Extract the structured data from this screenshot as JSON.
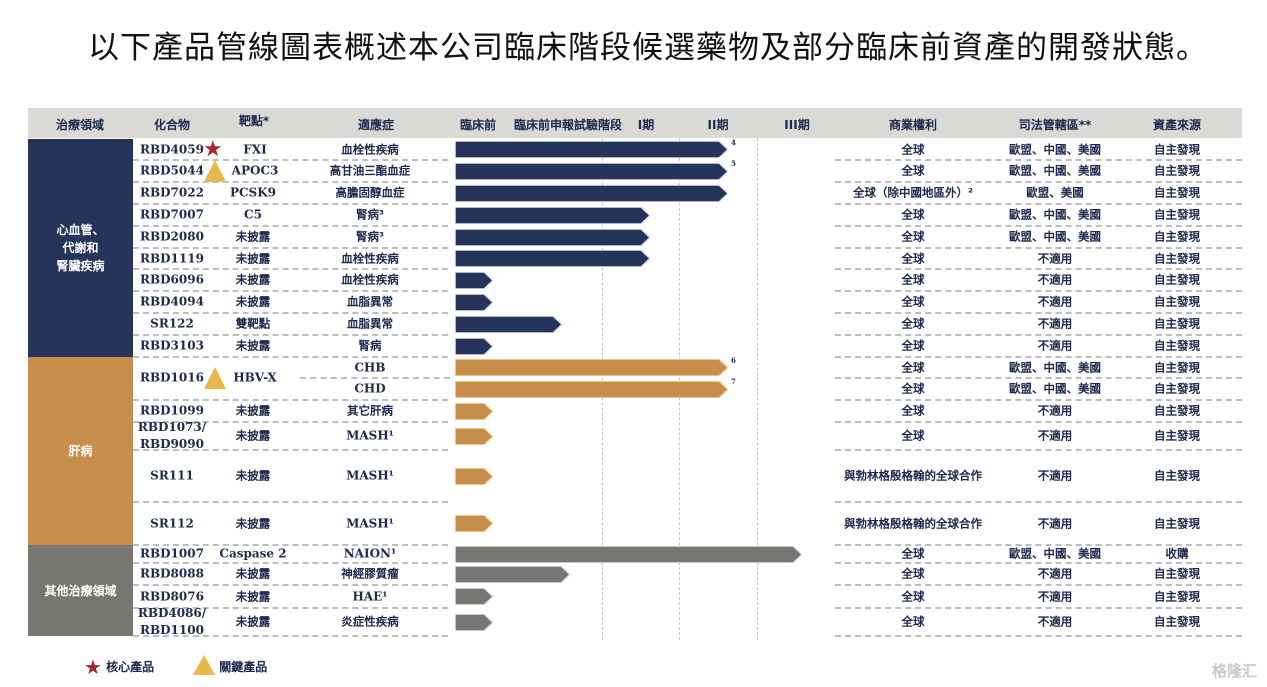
{
  "title": "以下產品管線圖表概述本公司臨床階段候選藥物及部分臨床前資產的開發狀態。",
  "header": {
    "area": "治療領域",
    "compound": "化合物",
    "target": "靶點*",
    "indication": "適應症",
    "preclinical": "臨床前",
    "ind": "臨床前申報試驗階段",
    "p1": "I期",
    "p2": "II期",
    "p3": "III期",
    "rights": "商業權利",
    "jurisdiction": "司法管轄區**",
    "source": "資產來源"
  },
  "colors": {
    "cardio": "#26335a",
    "liver": "#c68d4b",
    "other": "#767672",
    "star": "#a8252b",
    "triangle": "#e8b84a"
  },
  "areas": [
    {
      "label": "心血管、\n代謝和\n腎臟疾病",
      "color_key": "cardio"
    },
    {
      "label": "肝病",
      "color_key": "liver"
    },
    {
      "label": "其他治療領域",
      "color_key": "other"
    }
  ],
  "rows": [
    {
      "compound": "RBD4059",
      "badge": "star",
      "target": "FXI",
      "indication": "血栓性疾病",
      "stage": "II",
      "note": "4",
      "rights": "全球",
      "jurisdiction": "歐盟、中國、美國",
      "source": "自主發現",
      "area": 0
    },
    {
      "compound": "RBD5044",
      "badge": "triangle",
      "target": "APOC3",
      "indication": "高甘油三酯血症",
      "stage": "II",
      "note": "5",
      "rights": "全球",
      "jurisdiction": "歐盟、中國、美國",
      "source": "自主發現",
      "area": 0
    },
    {
      "compound": "RBD7022",
      "target": "PCSK9",
      "indication": "高膽固醇血症",
      "stage": "II",
      "rights": "全球（除中國地區外）²",
      "jurisdiction": "歐盟、美國",
      "source": "自主發現",
      "area": 0
    },
    {
      "compound": "RBD7007",
      "target": "C5",
      "indication": "腎病³",
      "stage": "I",
      "rights": "全球",
      "jurisdiction": "歐盟、中國、美國",
      "source": "自主發現",
      "area": 0
    },
    {
      "compound": "RBD2080",
      "target": "未披露",
      "indication": "腎病³",
      "stage": "I",
      "rights": "全球",
      "jurisdiction": "歐盟、中國、美國",
      "source": "自主發現",
      "area": 0
    },
    {
      "compound": "RBD1119",
      "target": "未披露",
      "indication": "血栓性疾病",
      "stage": "I",
      "rights": "全球",
      "jurisdiction": "不適用",
      "source": "自主發現",
      "area": 0
    },
    {
      "compound": "RBD6096",
      "target": "未披露",
      "indication": "血栓性疾病",
      "stage": "preclinical",
      "rights": "全球",
      "jurisdiction": "不適用",
      "source": "自主發現",
      "area": 0
    },
    {
      "compound": "RBD4094",
      "target": "未披露",
      "indication": "血脂異常",
      "stage": "preclinical",
      "rights": "全球",
      "jurisdiction": "不適用",
      "source": "自主發現",
      "area": 0
    },
    {
      "compound": "SR122",
      "target": "雙靶點",
      "indication": "血脂異常",
      "stage": "ind",
      "rights": "全球",
      "jurisdiction": "不適用",
      "source": "自主發現",
      "area": 0
    },
    {
      "compound": "RBD3103",
      "target": "未披露",
      "indication": "腎病",
      "stage": "preclinical",
      "rights": "全球",
      "jurisdiction": "不適用",
      "source": "自主發現",
      "area": 0
    },
    {
      "compound": "RBD1016",
      "badge": "triangle",
      "target": "HBV-X",
      "indication": "CHB",
      "stage": "II",
      "note": "6",
      "rights": "全球",
      "jurisdiction": "歐盟、中國、美國",
      "source": "自主發現",
      "area": 1
    },
    {
      "compound": "",
      "target": "",
      "indication": "CHD",
      "stage": "II",
      "note": "7",
      "rights": "全球",
      "jurisdiction": "歐盟、中國、美國",
      "source": "自主發現",
      "area": 1
    },
    {
      "compound": "RBD1099",
      "target": "未披露",
      "indication": "其它肝病",
      "stage": "preclinical",
      "rights": "全球",
      "jurisdiction": "不適用",
      "source": "自主發現",
      "area": 1
    },
    {
      "compound": "RBD1073/\nRBD9090",
      "target": "未披露",
      "indication": "MASH¹",
      "stage": "preclinical",
      "rights": "全球",
      "jurisdiction": "不適用",
      "source": "自主發現",
      "area": 1
    },
    {
      "compound": "SR111",
      "target": "未披露",
      "indication": "MASH¹",
      "stage": "preclinical",
      "rights": "與勃林格殷格翰的全球合作",
      "jurisdiction": "不適用",
      "source": "自主發現",
      "area": 1
    },
    {
      "compound": "SR112",
      "target": "未披露",
      "indication": "MASH¹",
      "stage": "preclinical",
      "rights": "與勃林格殷格翰的全球合作",
      "jurisdiction": "不適用",
      "source": "自主發現",
      "area": 1
    },
    {
      "compound": "RBD1007",
      "target": "Caspase 2",
      "indication": "NAION¹",
      "stage": "III",
      "rights": "全球",
      "jurisdiction": "歐盟、中國、美國",
      "source": "收購",
      "area": 2
    },
    {
      "compound": "RBD8088",
      "target": "未披露",
      "indication": "神經膠質瘤",
      "stage": "ind",
      "rights": "全球",
      "jurisdiction": "不適用",
      "source": "自主發現",
      "area": 2
    },
    {
      "compound": "RBD8076",
      "target": "未披露",
      "indication": "HAE¹",
      "stage": "preclinical",
      "rights": "全球",
      "jurisdiction": "不適用",
      "source": "自主發現",
      "area": 2
    },
    {
      "compound": "RBD4086/\nRBD1100",
      "target": "未披露",
      "indication": "炎症性疾病",
      "stage": "preclinical",
      "rights": "全球",
      "jurisdiction": "不適用",
      "source": "自主發現",
      "area": 2
    }
  ],
  "legend": {
    "core": "核心產品",
    "key": "關鍵產品"
  },
  "watermark": "格隆汇"
}
